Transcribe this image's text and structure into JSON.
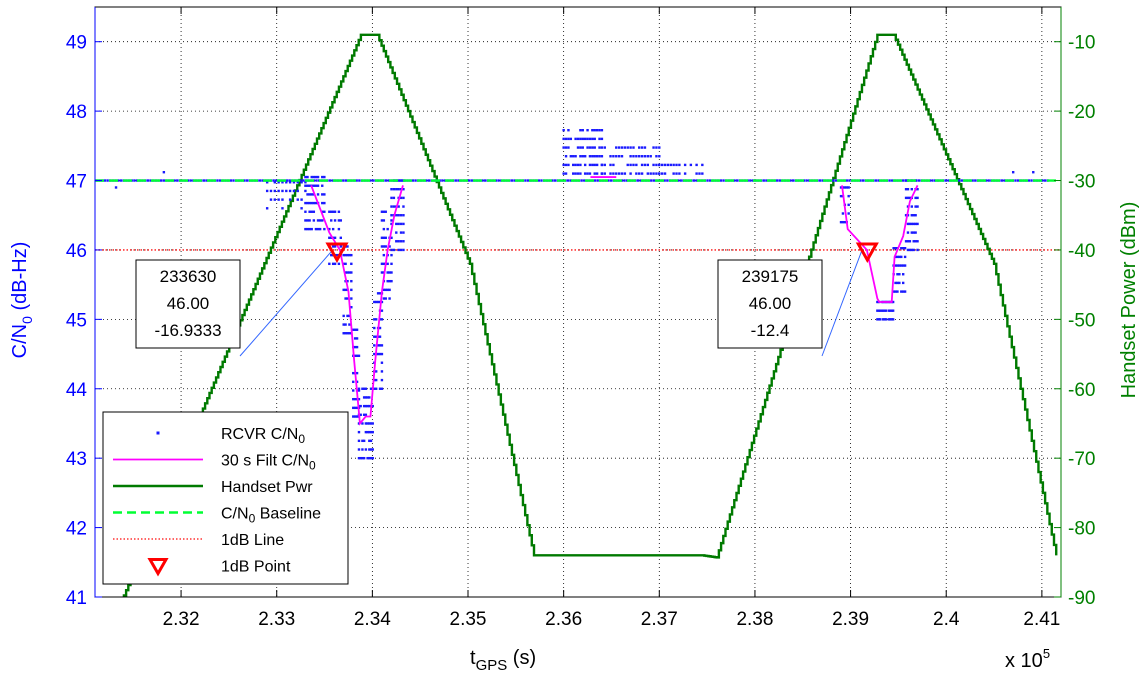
{
  "chart_data": {
    "type": "line",
    "title": "",
    "xlabel_main": "t",
    "xlabel_sub": "GPS",
    "xlabel_unit": " (s)",
    "x_multiplier_label": "x 10",
    "x_multiplier_exp": "5",
    "ylabel_left_main": "C/N",
    "ylabel_left_sub": "0",
    "ylabel_left_unit": " (dB-Hz)",
    "ylabel_right": "Handset Power (dBm)",
    "xlim": [
      2.311,
      2.412
    ],
    "ylim_left": [
      41,
      49.5
    ],
    "ylim_right": [
      -90,
      -5
    ],
    "grid": true,
    "x_ticks": [
      2.32,
      2.33,
      2.34,
      2.35,
      2.36,
      2.37,
      2.38,
      2.39,
      2.4,
      2.41
    ],
    "x_tick_labels": [
      "2.32",
      "2.33",
      "2.34",
      "2.35",
      "2.36",
      "2.37",
      "2.38",
      "2.39",
      "2.4",
      "2.41"
    ],
    "y_left_ticks": [
      41,
      42,
      43,
      44,
      45,
      46,
      47,
      48,
      49
    ],
    "y_left_tick_labels": [
      "41",
      "42",
      "43",
      "44",
      "45",
      "46",
      "47",
      "48",
      "49"
    ],
    "y_right_ticks": [
      -90,
      -80,
      -70,
      -60,
      -50,
      -40,
      -30,
      -20,
      -10
    ],
    "y_right_tick_labels": [
      "-90",
      "-80",
      "-70",
      "-60",
      "-50",
      "-40",
      "-30",
      "-20",
      "-10"
    ],
    "colors": {
      "rcvr": "#1a1aff",
      "filt": "#ff00ff",
      "handset": "#007a00",
      "baseline": "#00ff33",
      "line1db": "#ff3333",
      "point1db": "#ff0000",
      "left_axis": "#0000ff",
      "right_axis": "#008000"
    },
    "legend": {
      "placement": "lower-left",
      "entries": [
        {
          "main": "RCVR C/N",
          "sub": "0",
          "style": "dots"
        },
        {
          "main": "30 s Filt C/N",
          "sub": "0",
          "style": "filt"
        },
        {
          "main": "Handset Pwr",
          "sub": "",
          "style": "handset"
        },
        {
          "main": "C/N",
          "sub": "0",
          "tail": " Baseline",
          "style": "baseline"
        },
        {
          "main": "1dB Line",
          "sub": "",
          "style": "line1db"
        },
        {
          "main": "1dB Point",
          "sub": "",
          "style": "point1db"
        }
      ]
    },
    "series": {
      "baseline_cn0": 47,
      "line_1db": 46,
      "handset_pwr_dbm": [
        {
          "x": 2.3115,
          "y": -98
        },
        {
          "x": 2.3388,
          "y": -9
        },
        {
          "x": 2.3405,
          "y": -9
        },
        {
          "x": 2.3502,
          "y": -42
        },
        {
          "x": 2.3569,
          "y": -84
        },
        {
          "x": 2.3745,
          "y": -84
        },
        {
          "x": 2.376,
          "y": -84.3
        },
        {
          "x": 2.3928,
          "y": -9
        },
        {
          "x": 2.3945,
          "y": -9
        },
        {
          "x": 2.405,
          "y": -42
        },
        {
          "x": 2.4115,
          "y": -84
        }
      ],
      "filtered_cn0": [
        [
          {
            "x": 2.3336,
            "y": 46.93
          },
          {
            "x": 2.3355,
            "y": 46.25
          },
          {
            "x": 2.3366,
            "y": 46.0
          },
          {
            "x": 2.3375,
            "y": 45.4
          },
          {
            "x": 2.3381,
            "y": 44.4
          },
          {
            "x": 2.3387,
            "y": 43.5
          },
          {
            "x": 2.3393,
            "y": 43.6
          },
          {
            "x": 2.3398,
            "y": 43.6
          },
          {
            "x": 2.3403,
            "y": 44.4
          },
          {
            "x": 2.341,
            "y": 45.4
          },
          {
            "x": 2.3416,
            "y": 46.0
          },
          {
            "x": 2.3423,
            "y": 46.5
          },
          {
            "x": 2.3432,
            "y": 46.93
          }
        ],
        [
          {
            "x": 2.3628,
            "y": 47.05
          },
          {
            "x": 2.3655,
            "y": 47.05
          }
        ],
        [
          {
            "x": 2.3891,
            "y": 46.93
          },
          {
            "x": 2.3897,
            "y": 46.3
          },
          {
            "x": 2.3917,
            "y": 46.0
          },
          {
            "x": 2.3928,
            "y": 45.3
          },
          {
            "x": 2.393,
            "y": 45.25
          },
          {
            "x": 2.3943,
            "y": 45.25
          },
          {
            "x": 2.3946,
            "y": 45.9
          },
          {
            "x": 2.3955,
            "y": 46.2
          },
          {
            "x": 2.3962,
            "y": 46.7
          },
          {
            "x": 2.397,
            "y": 46.93
          }
        ]
      ],
      "rcvr_cn0_clusters": [
        {
          "x0": 2.3112,
          "x1": 2.4108,
          "y0": 47.0,
          "y1": 47.0,
          "step": 0.00028
        },
        {
          "x0": 2.329,
          "x1": 2.333,
          "y0": 46.6,
          "y1": 46.95,
          "step": 0.0004
        },
        {
          "x0": 2.333,
          "x1": 2.335,
          "y0": 46.3,
          "y1": 47.0,
          "step": 0.00022
        },
        {
          "x0": 2.3355,
          "x1": 2.3368,
          "y0": 45.8,
          "y1": 46.5,
          "step": 0.0002
        },
        {
          "x0": 2.337,
          "x1": 2.3378,
          "y0": 44.8,
          "y1": 46.0,
          "step": 0.0002
        },
        {
          "x0": 2.338,
          "x1": 2.3386,
          "y0": 43.6,
          "y1": 44.9,
          "step": 0.0002
        },
        {
          "x0": 2.3386,
          "x1": 2.3402,
          "y0": 43.0,
          "y1": 44.0,
          "step": 0.00018
        },
        {
          "x0": 2.3402,
          "x1": 2.341,
          "y0": 44.0,
          "y1": 45.4,
          "step": 0.0002
        },
        {
          "x0": 2.341,
          "x1": 2.342,
          "y0": 45.3,
          "y1": 46.6,
          "step": 0.0002
        },
        {
          "x0": 2.342,
          "x1": 2.3434,
          "y0": 46.0,
          "y1": 46.95,
          "step": 0.00025
        },
        {
          "x0": 2.36,
          "x1": 2.364,
          "y0": 47.1,
          "y1": 47.75,
          "step": 0.00025
        },
        {
          "x0": 2.364,
          "x1": 2.37,
          "y0": 47.1,
          "y1": 47.45,
          "step": 0.0003
        },
        {
          "x0": 2.37,
          "x1": 2.3745,
          "y0": 47.1,
          "y1": 47.25,
          "step": 0.0003
        },
        {
          "x0": 2.389,
          "x1": 2.3898,
          "y0": 46.4,
          "y1": 46.9,
          "step": 0.0002
        },
        {
          "x0": 2.3928,
          "x1": 2.3945,
          "y0": 45.0,
          "y1": 45.3,
          "step": 0.00015
        },
        {
          "x0": 2.3945,
          "x1": 2.3958,
          "y0": 45.4,
          "y1": 46.0,
          "step": 0.0002
        },
        {
          "x0": 2.3958,
          "x1": 2.397,
          "y0": 46.0,
          "y1": 46.95,
          "step": 0.0002
        }
      ],
      "rcvr_cn0_isolated": [
        {
          "x": 2.3132,
          "y": 46.9
        },
        {
          "x": 2.3182,
          "y": 47.12
        },
        {
          "x": 2.407,
          "y": 47.12
        },
        {
          "x": 2.4091,
          "y": 47.12
        }
      ]
    },
    "annotations": [
      {
        "x": 233630,
        "y": "46.00",
        "z": "-16.9333",
        "point_x": 2.3363,
        "point_y": 46.0
      },
      {
        "x": 239175,
        "y": "46.00",
        "z": "-12.4",
        "point_x": 2.39175,
        "point_y": 46.0
      }
    ]
  }
}
